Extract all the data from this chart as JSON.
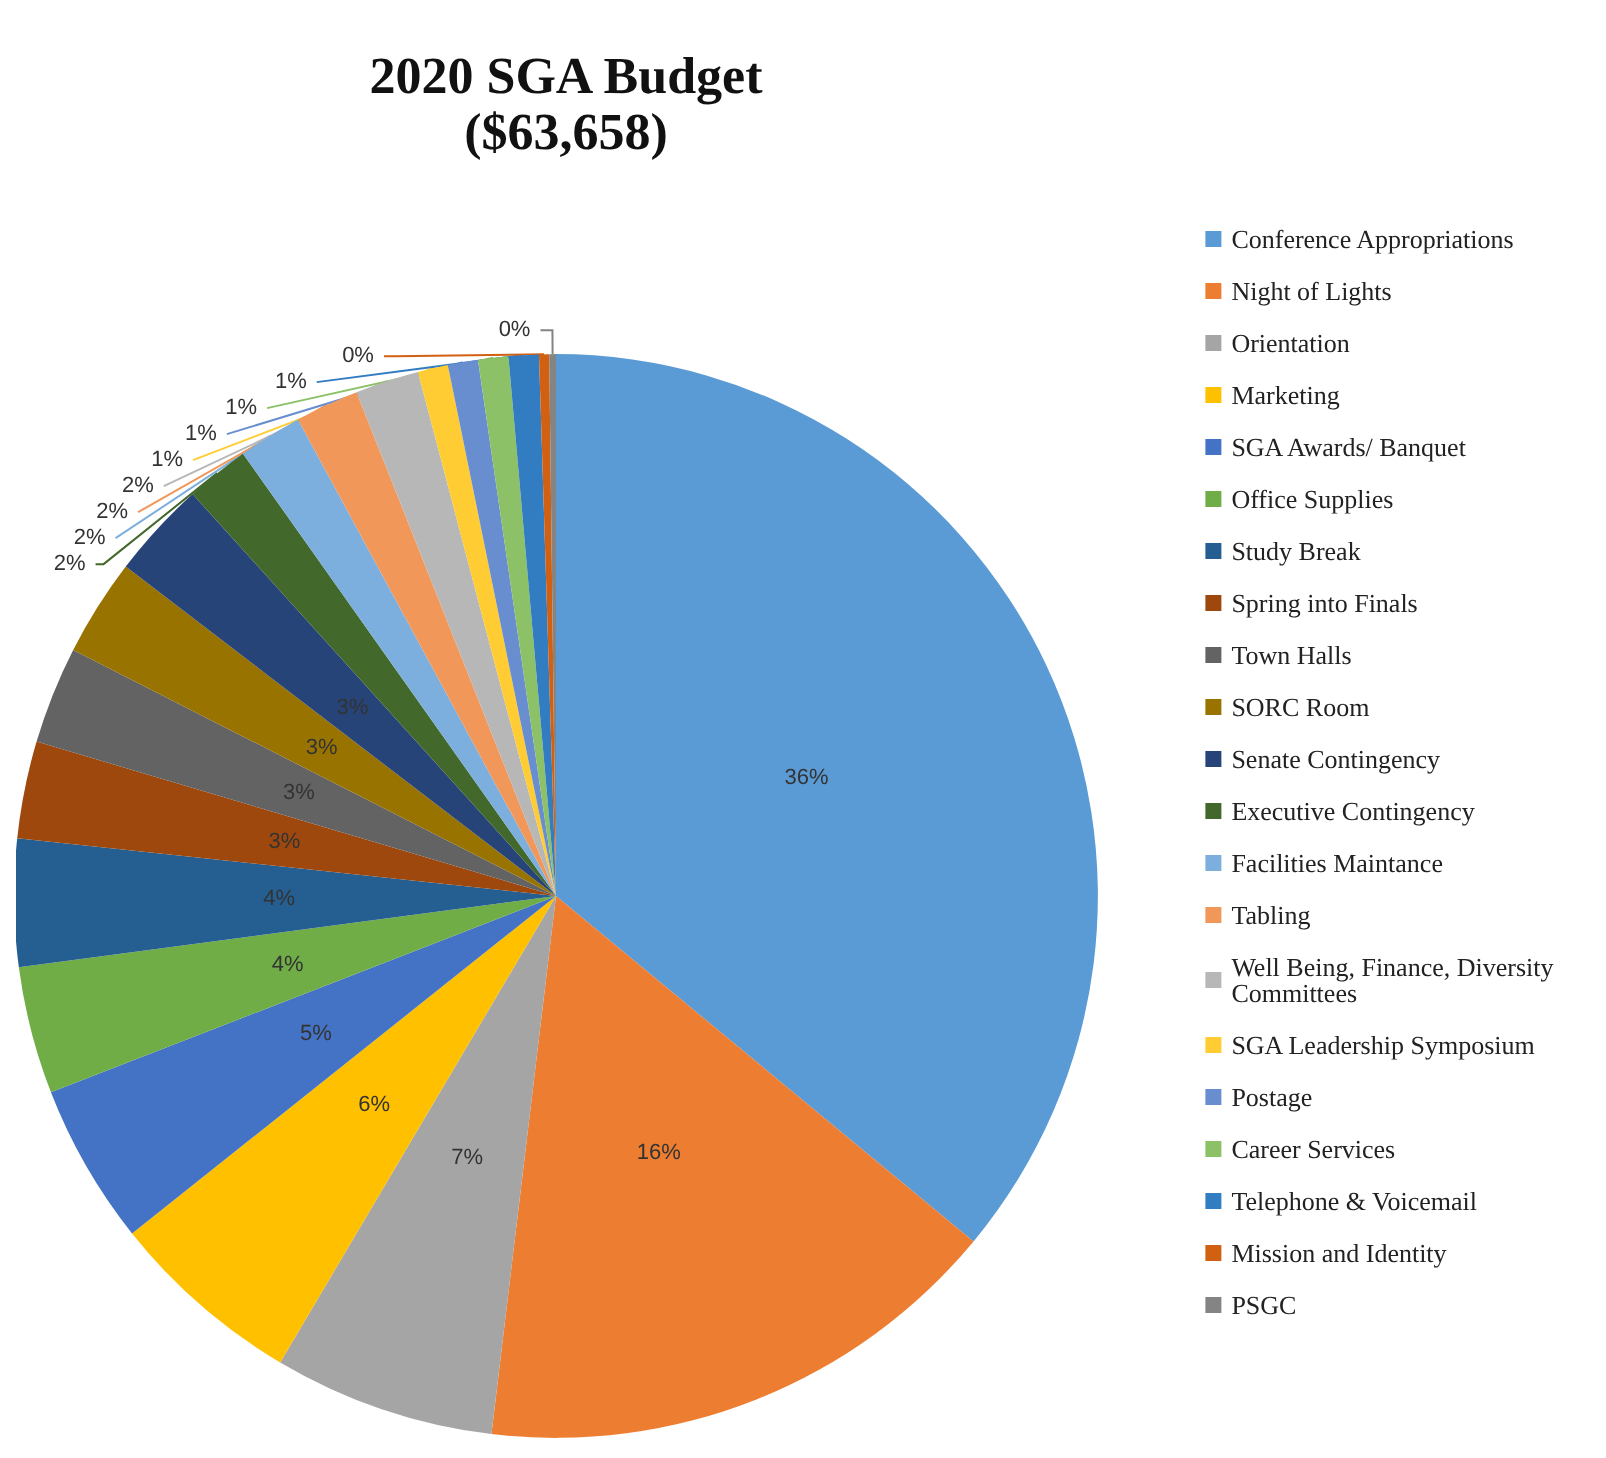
{
  "chart_data": {
    "type": "pie",
    "title": "2020 SGA Budget",
    "subtitle": "($63,658)",
    "categories": [
      "Conference Appropriations",
      "Night of Lights",
      "Orientation",
      "Marketing",
      "SGA Awards/ Banquet",
      "Office Supplies",
      "Study Break",
      "Spring into Finals",
      "Town Halls",
      "SORC Room",
      "Senate Contingency",
      "Executive Contingency",
      "Facilities Maintance",
      "Tabling",
      "Well Being, Finance, Diversity Committees",
      "SGA Leadership Symposium",
      "Postage",
      "Career Services",
      "Telephone & Voicemail",
      "Mission and Identity",
      "PSGC"
    ],
    "values": [
      36.0,
      15.9,
      6.6,
      5.8,
      4.8,
      3.8,
      3.8,
      2.9,
      2.9,
      2.9,
      2.9,
      1.9,
      1.9,
      1.9,
      1.9,
      0.9,
      0.9,
      0.9,
      0.9,
      0.3,
      0.2
    ],
    "value_labels": [
      "36%",
      "16%",
      "7%",
      "6%",
      "5%",
      "4%",
      "4%",
      "3%",
      "3%",
      "3%",
      "3%",
      "2%",
      "2%",
      "2%",
      "2%",
      "1%",
      "1%",
      "1%",
      "1%",
      "0%",
      "0%"
    ],
    "colors": [
      "#5b9bd5",
      "#ed7d31",
      "#a5a5a5",
      "#ffc000",
      "#4472c4",
      "#70ad47",
      "#255e91",
      "#9e480e",
      "#636363",
      "#997300",
      "#264478",
      "#43682b",
      "#7cafdd",
      "#f1975a",
      "#b7b7b7",
      "#ffcd33",
      "#698ed0",
      "#8cc168",
      "#327dc2",
      "#d26012",
      "#848484"
    ],
    "legend": "right"
  }
}
